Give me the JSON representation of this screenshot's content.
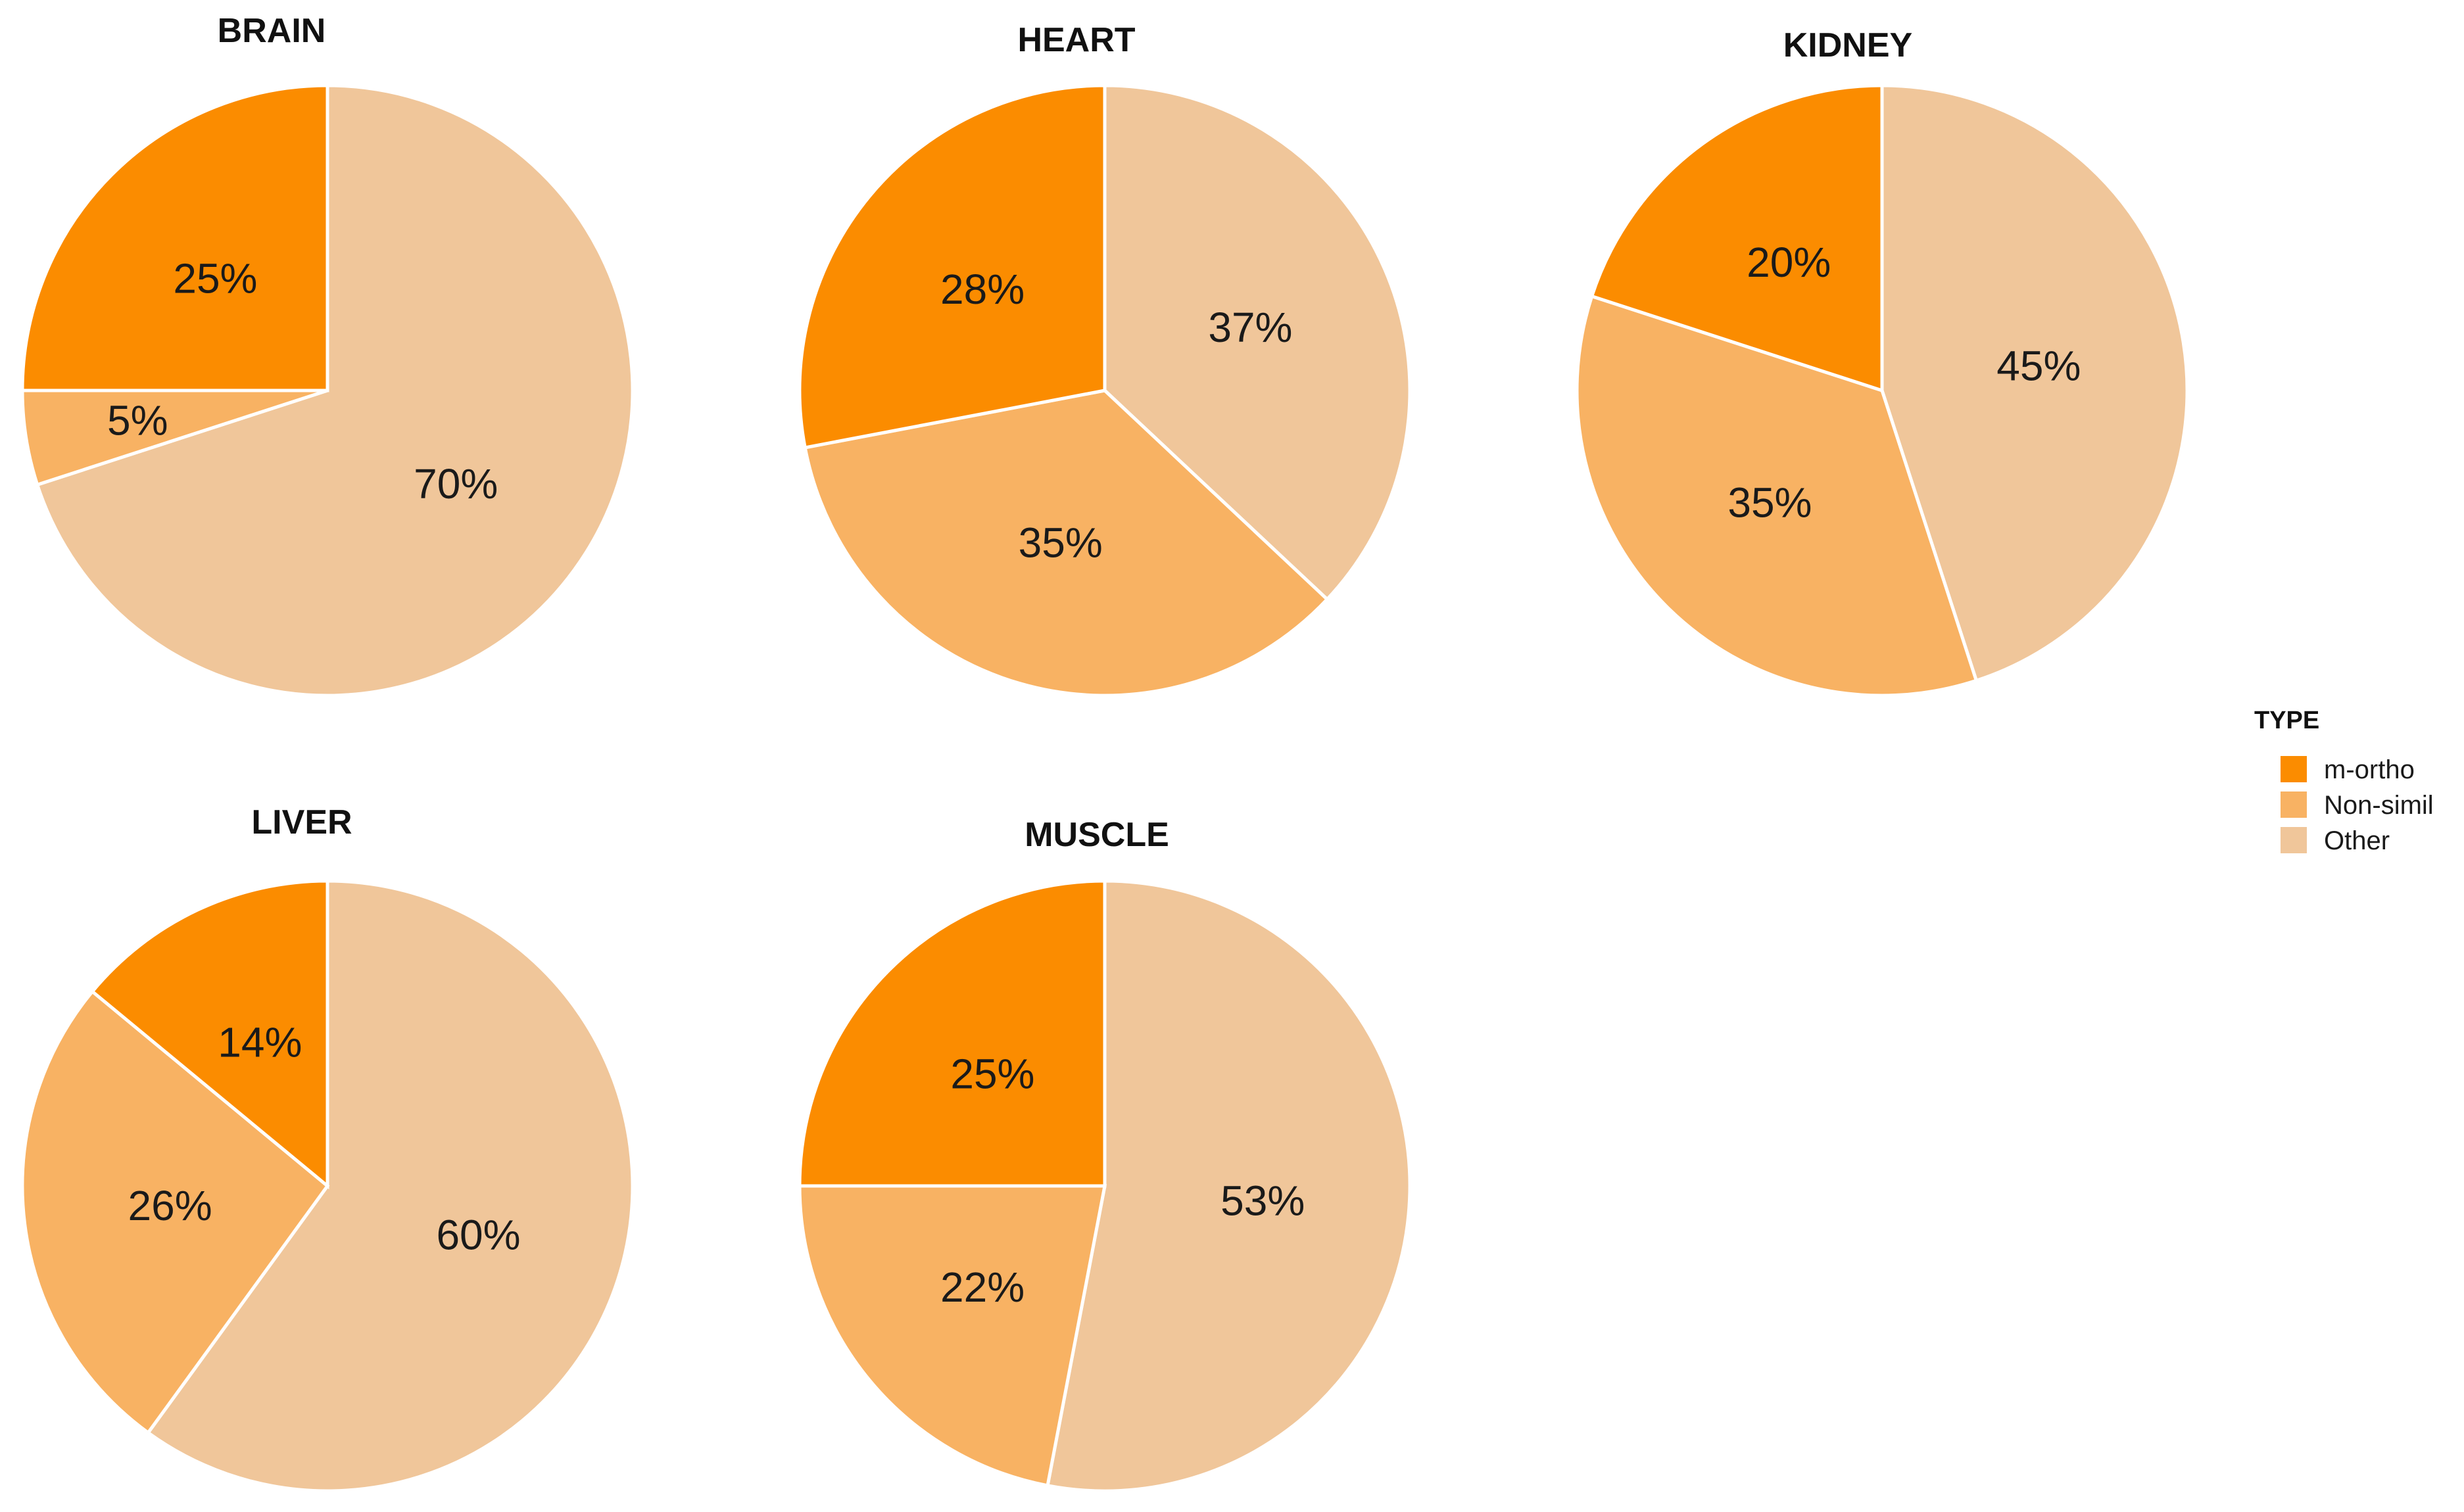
{
  "chart_data": {
    "type": "pie",
    "colors": {
      "m-ortho": "#fb8c00",
      "Non-simil": "#f8b263",
      "Other": "#f0c69a"
    },
    "legend": {
      "title": "TYPE",
      "placement": "right",
      "entries": [
        "m-ortho",
        "Non-simil",
        "Other"
      ]
    },
    "panels": [
      {
        "title": "BRAIN",
        "slices": [
          {
            "category": "m-ortho",
            "value": 25,
            "label": "25%"
          },
          {
            "category": "Non-simil",
            "value": 5,
            "label": "5%"
          },
          {
            "category": "Other",
            "value": 70,
            "label": "70%"
          }
        ]
      },
      {
        "title": "HEART",
        "slices": [
          {
            "category": "m-ortho",
            "value": 28,
            "label": "28%"
          },
          {
            "category": "Non-simil",
            "value": 35,
            "label": "35%"
          },
          {
            "category": "Other",
            "value": 37,
            "label": "37%"
          }
        ]
      },
      {
        "title": "KIDNEY",
        "slices": [
          {
            "category": "m-ortho",
            "value": 20,
            "label": "20%"
          },
          {
            "category": "Non-simil",
            "value": 35,
            "label": "35%"
          },
          {
            "category": "Other",
            "value": 45,
            "label": "45%"
          }
        ]
      },
      {
        "title": "LIVER",
        "slices": [
          {
            "category": "m-ortho",
            "value": 14,
            "label": "14%"
          },
          {
            "category": "Non-simil",
            "value": 26,
            "label": "26%"
          },
          {
            "category": "Other",
            "value": 60,
            "label": "60%"
          }
        ]
      },
      {
        "title": "MUSCLE",
        "slices": [
          {
            "category": "m-ortho",
            "value": 25,
            "label": "25%"
          },
          {
            "category": "Non-simil",
            "value": 22,
            "label": "22%"
          },
          {
            "category": "Other",
            "value": 53,
            "label": "53%"
          }
        ]
      }
    ]
  }
}
